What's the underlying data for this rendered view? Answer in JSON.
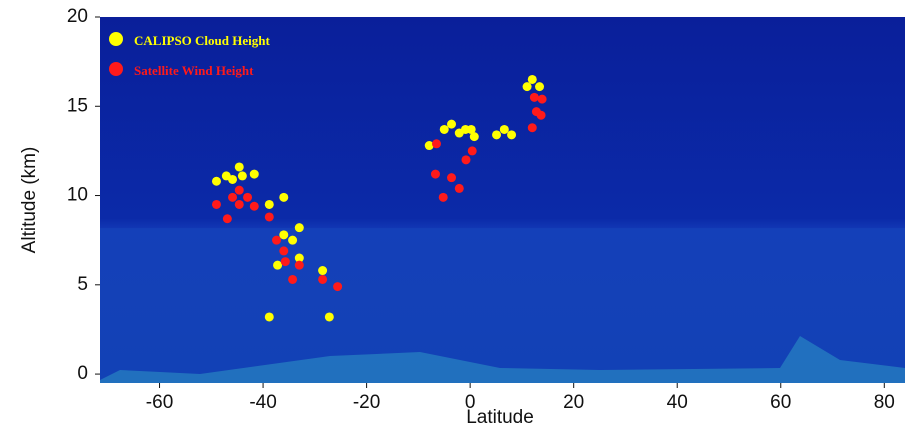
{
  "chart_data": {
    "type": "scatter",
    "x_label": "Latitude",
    "y_label": "Altitude (km)",
    "xlim": [
      -71.5,
      84
    ],
    "ylim": [
      -0.5,
      20
    ],
    "xticks": [
      -60,
      -40,
      -20,
      0,
      20,
      40,
      60,
      80
    ],
    "yticks": [
      0,
      5,
      10,
      15,
      20
    ],
    "legend": "upper left",
    "series": [
      {
        "name": "CALIPSO Cloud Height",
        "color": "#ffff00",
        "x": [
          -49,
          -47.1,
          -45.9,
          -44.6,
          -44,
          -41.7,
          -38.8,
          -36,
          -36,
          -34.3,
          -33,
          -37.2,
          -33,
          -28.5,
          -38.8,
          -27.2,
          -7.9,
          -5,
          -3.6,
          -2.1,
          -0.9,
          0.2,
          0.8,
          5.1,
          6.6,
          8,
          12,
          11,
          13.4
        ],
        "values": [
          10.8,
          11.1,
          10.9,
          11.6,
          11.1,
          11.2,
          9.5,
          9.9,
          7.8,
          7.5,
          8.2,
          6.1,
          6.5,
          5.8,
          3.2,
          3.2,
          12.8,
          13.7,
          14.0,
          13.5,
          13.7,
          13.7,
          13.3,
          13.4,
          13.7,
          13.4,
          16.5,
          16.1,
          16.1
        ]
      },
      {
        "name": "Satellite Wind Height",
        "color": "#ff1a1a",
        "x": [
          -49,
          -46.9,
          -45.9,
          -44.6,
          -44.6,
          -43,
          -41.7,
          -38.8,
          -37.4,
          -36,
          -35.7,
          -33,
          -34.3,
          -28.5,
          -25.6,
          -6.5,
          -6.7,
          -3.6,
          -2.1,
          -5.2,
          -0.8,
          0.4,
          12.4,
          12.8,
          12,
          13.7,
          13.9
        ],
        "values": [
          9.5,
          8.7,
          9.9,
          9.5,
          10.3,
          9.9,
          9.4,
          8.8,
          7.5,
          6.9,
          6.3,
          6.1,
          5.3,
          5.3,
          4.9,
          12.9,
          11.2,
          11.0,
          10.4,
          9.9,
          12.0,
          12.5,
          15.5,
          14.7,
          13.8,
          14.5,
          15.4
        ]
      }
    ]
  }
}
